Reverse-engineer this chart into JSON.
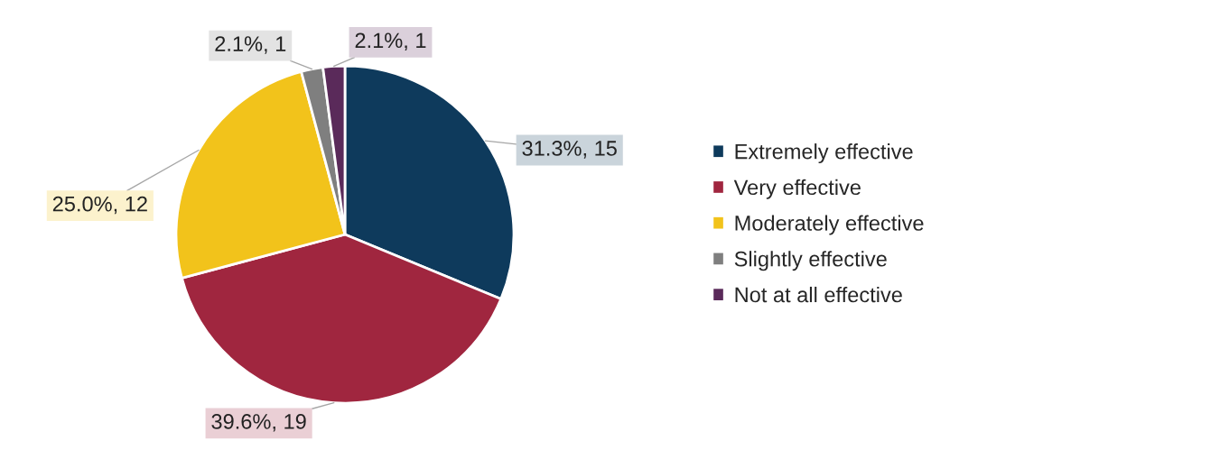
{
  "chart_data": {
    "type": "pie",
    "categories": [
      "Extremely effective",
      "Very effective",
      "Moderately effective",
      "Slightly effective",
      "Not at all effective"
    ],
    "values": [
      15,
      19,
      12,
      1,
      1
    ],
    "colors": [
      "#0e3a5c",
      "#a0263f",
      "#f2c31b",
      "#7f7f7f",
      "#5a2a5a"
    ],
    "value_labels": [
      "31.3%, 15",
      "39.6%, 19",
      "25.0%, 12",
      "2.1%, 1",
      "2.1%, 1"
    ],
    "legend": "right"
  }
}
